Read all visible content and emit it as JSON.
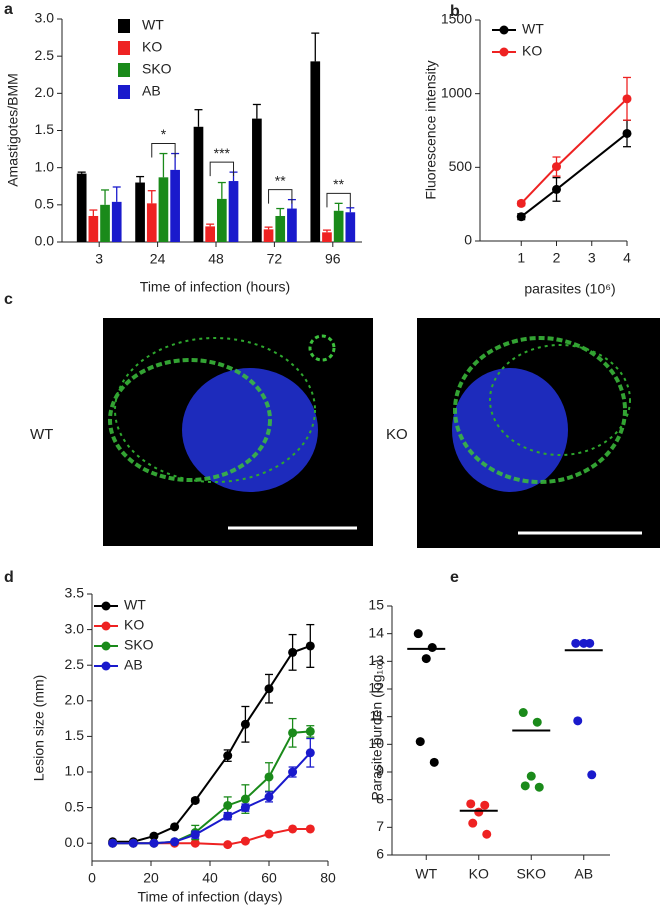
{
  "chart_data": [
    {
      "panel": "a",
      "type": "bar",
      "ylabel": "Amastigotes/BMM",
      "xlabel": "Time of infection (hours)",
      "categories": [
        "3",
        "24",
        "48",
        "72",
        "96"
      ],
      "ylim": [
        0,
        3
      ],
      "yticks": [
        {
          "value": 0,
          "label": "0.0"
        },
        0.5,
        {
          "value": 1,
          "label": "1.0"
        },
        1.5,
        {
          "value": 2,
          "label": "2.0"
        },
        2.5,
        {
          "value": 3,
          "label": "3.0"
        }
      ],
      "series": [
        {
          "name": "WT",
          "color": "#000000",
          "values": [
            0.92,
            0.8,
            1.55,
            1.66,
            2.43
          ],
          "errors": [
            0.02,
            0.08,
            0.23,
            0.19,
            0.38
          ]
        },
        {
          "name": "KO",
          "color": "#ee2222",
          "values": [
            0.35,
            0.52,
            0.21,
            0.17,
            0.13
          ],
          "errors": [
            0.08,
            0.17,
            0.03,
            0.03,
            0.03
          ]
        },
        {
          "name": "SKO",
          "color": "#1a8a1a",
          "values": [
            0.5,
            0.87,
            0.58,
            0.35,
            0.42
          ],
          "errors": [
            0.2,
            0.32,
            0.22,
            0.1,
            0.1
          ]
        },
        {
          "name": "AB",
          "color": "#1a1acc",
          "values": [
            0.54,
            0.97,
            0.82,
            0.45,
            0.4
          ],
          "errors": [
            0.2,
            0.22,
            0.12,
            0.12,
            0.06
          ]
        }
      ],
      "annotations": [
        "*",
        "***",
        "**",
        "**"
      ]
    },
    {
      "panel": "b",
      "type": "line",
      "ylabel": "Fluorescence intensity",
      "xlabel": "parasites (10⁶)",
      "x": [
        1,
        2,
        4
      ],
      "xlim": [
        0,
        4
      ],
      "xticks": [
        1,
        2,
        3,
        4
      ],
      "ylim": [
        0,
        1500
      ],
      "yticks": [
        0,
        500,
        1000,
        1500
      ],
      "series": [
        {
          "name": "WT",
          "color": "#000000",
          "values": [
            165,
            350,
            730
          ],
          "errors": [
            20,
            80,
            90
          ]
        },
        {
          "name": "KO",
          "color": "#ee2222",
          "values": [
            255,
            505,
            965
          ],
          "errors": [
            15,
            65,
            145
          ]
        }
      ]
    },
    {
      "panel": "d",
      "type": "line",
      "ylabel": "Lesion size (mm)",
      "xlabel": "Time of infection (days)",
      "x": [
        7,
        14,
        21,
        28,
        35,
        46,
        52,
        60,
        68,
        74
      ],
      "xlim": [
        0,
        80
      ],
      "xticks": [
        0,
        20,
        40,
        60,
        80
      ],
      "ylim": [
        -0.25,
        3.5
      ],
      "yticks": [
        {
          "value": 0,
          "label": "0.0"
        },
        0.5,
        {
          "value": 1,
          "label": "1.0"
        },
        1.5,
        {
          "value": 2,
          "label": "2.0"
        },
        2.5,
        {
          "value": 3,
          "label": "3.0"
        },
        3.5
      ],
      "series": [
        {
          "name": "WT",
          "color": "#000000",
          "values": [
            0.02,
            0.02,
            0.1,
            0.23,
            0.6,
            1.23,
            1.67,
            2.17,
            2.68,
            2.77
          ],
          "errors": [
            0,
            0,
            0,
            0,
            0.03,
            0.08,
            0.25,
            0.2,
            0.25,
            0.3
          ]
        },
        {
          "name": "KO",
          "color": "#ee2222",
          "values": [
            0,
            0,
            0,
            0,
            0,
            -0.02,
            0.03,
            0.13,
            0.2,
            0.2
          ],
          "errors": [
            0,
            0,
            0,
            0,
            0,
            0,
            0,
            0,
            0,
            0
          ]
        },
        {
          "name": "SKO",
          "color": "#1a8a1a",
          "values": [
            0,
            0,
            0,
            0.02,
            0.15,
            0.53,
            0.62,
            0.93,
            1.55,
            1.57
          ],
          "errors": [
            0,
            0,
            0,
            0,
            0.1,
            0.12,
            0.2,
            0.2,
            0.2,
            0.08
          ]
        },
        {
          "name": "AB",
          "color": "#1a1acc",
          "values": [
            0,
            0,
            0,
            0.02,
            0.12,
            0.38,
            0.5,
            0.65,
            1.0,
            1.27
          ],
          "errors": [
            0,
            0,
            0,
            0,
            0.05,
            0.05,
            0.05,
            0.07,
            0.07,
            0.2
          ]
        }
      ]
    },
    {
      "panel": "e",
      "type": "dot",
      "ylabel": "Parasite burden (log₁₀)",
      "categories": [
        "WT",
        "KO",
        "SKO",
        "AB"
      ],
      "colors": [
        "#000000",
        "#ee2222",
        "#1a8a1a",
        "#1a1acc"
      ],
      "ylim": [
        6,
        15
      ],
      "yticks": [
        6,
        7,
        8,
        9,
        10,
        11,
        12,
        13,
        14,
        15
      ],
      "values": [
        [
          14.0,
          13.5,
          13.1,
          10.1,
          9.35
        ],
        [
          7.85,
          7.8,
          7.55,
          7.15,
          6.75
        ],
        [
          11.15,
          10.8,
          8.85,
          8.5,
          8.45
        ],
        [
          13.65,
          13.65,
          13.65,
          10.85,
          8.9
        ]
      ],
      "lines": [
        13.45,
        7.6,
        10.5,
        13.4
      ]
    }
  ],
  "images": {
    "panel": "c",
    "items": [
      {
        "label": "WT"
      },
      {
        "label": "KO"
      }
    ]
  }
}
